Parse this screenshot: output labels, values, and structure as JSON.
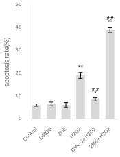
{
  "chart_data": {
    "type": "bar",
    "categories": [
      "Control",
      "DMOG",
      "2ME",
      "H2O2",
      "DMOG+H2O2",
      "2ME+H2O2"
    ],
    "values": [
      6.0,
      6.5,
      6.0,
      19.0,
      8.5,
      39.0
    ],
    "errors": [
      0.5,
      0.8,
      1.1,
      1.3,
      0.7,
      1.0
    ],
    "color": "#d9d9d9",
    "ylabel": "apoptosis rate(%)",
    "ylim": [
      0,
      50
    ],
    "yticks": [
      0,
      10,
      20,
      30,
      40,
      50
    ],
    "grid": false,
    "annotations": [
      {
        "category": "H2O2",
        "text": "**",
        "y": 22.0
      },
      {
        "category": "DMOG+H2O2",
        "text": "##",
        "y": 12.0
      },
      {
        "category": "DMOG+H2O2",
        "text": "*",
        "y": 10.5
      },
      {
        "category": "2ME+H2O2",
        "text": "##",
        "y": 43.5
      },
      {
        "category": "2ME+H2O2",
        "text": "**",
        "y": 42.0
      }
    ]
  }
}
